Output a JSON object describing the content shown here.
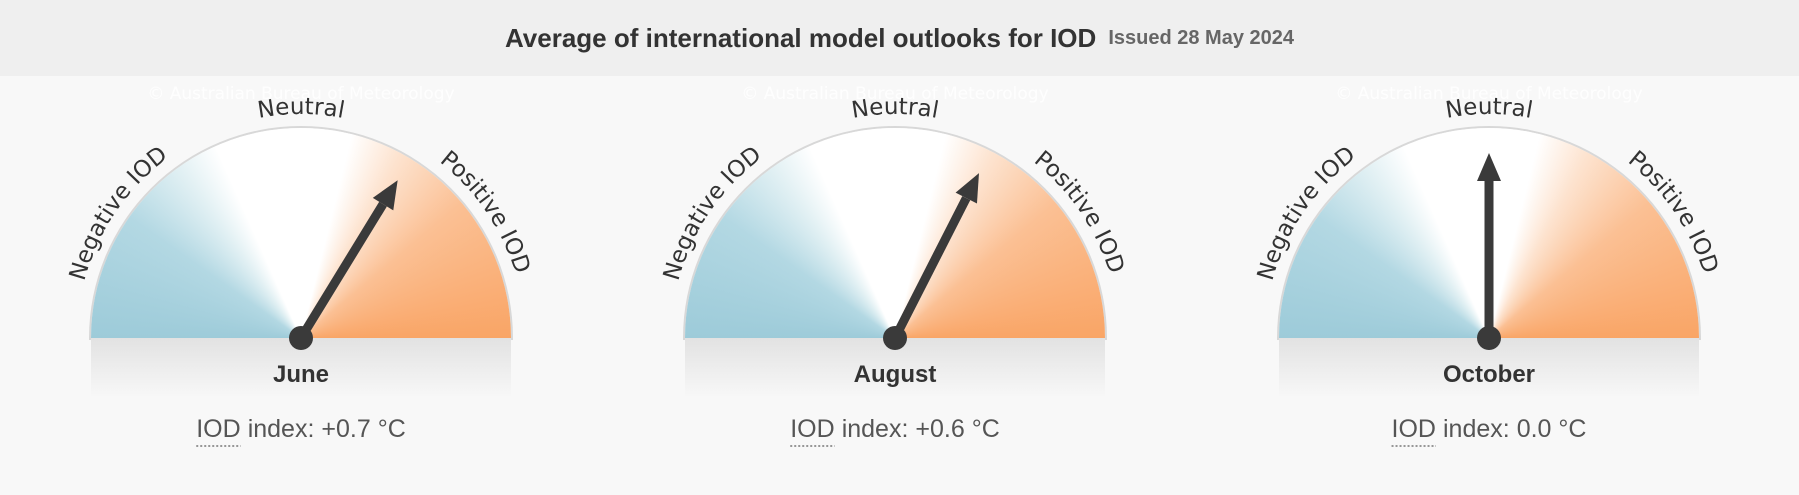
{
  "header": {
    "title": "Average of international model outlooks for IOD",
    "issued": "Issued 28 May 2024"
  },
  "watermark": "© Australian Bureau of Meteorology",
  "dial_labels": {
    "negative": "Negative IOD",
    "neutral": "Neutral",
    "positive": "Positive IOD"
  },
  "index_label": {
    "abbr": "IOD",
    "text": "index:"
  },
  "range": [
    -2,
    2
  ],
  "gauges": [
    {
      "month": "June",
      "value": 0.7,
      "value_label": "+0.7 °C"
    },
    {
      "month": "August",
      "value": 0.6,
      "value_label": "+0.6 °C"
    },
    {
      "month": "October",
      "value": 0.0,
      "value_label": "0.0 °C"
    }
  ]
}
